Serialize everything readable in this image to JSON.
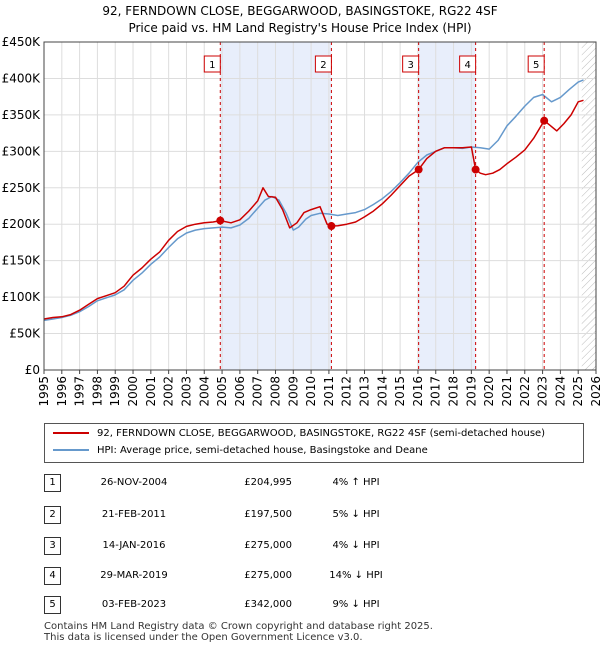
{
  "chart_data": {
    "type": "line",
    "title": "92, FERNDOWN CLOSE, BEGGARWOOD, BASINGSTOKE, RG22 4SF",
    "subtitle": "Price paid vs. HM Land Registry's House Price Index (HPI)",
    "xlim": [
      1995,
      2026
    ],
    "ylim": [
      0,
      450000
    ],
    "y_ticks": [
      0,
      50000,
      100000,
      150000,
      200000,
      250000,
      300000,
      350000,
      400000,
      450000
    ],
    "y_tick_labels": [
      "£0",
      "£50K",
      "£100K",
      "£150K",
      "£200K",
      "£250K",
      "£300K",
      "£350K",
      "£400K",
      "£450K"
    ],
    "x_ticks": [
      "1995",
      "1996",
      "1997",
      "1998",
      "1999",
      "2000",
      "2001",
      "2002",
      "2003",
      "2004",
      "2005",
      "2006",
      "2007",
      "2008",
      "2009",
      "2010",
      "2011",
      "2012",
      "2013",
      "2014",
      "2015",
      "2016",
      "2017",
      "2018",
      "2019",
      "2020",
      "2021",
      "2022",
      "2023",
      "2024",
      "2025",
      "2026"
    ],
    "grid": true,
    "shaded_periods": [
      [
        2004.9,
        2011.14
      ],
      [
        2016.04,
        2019.24
      ]
    ],
    "future_hatch_from": 2025.2,
    "series": [
      {
        "name": "92, FERNDOWN CLOSE, BEGGARWOOD, BASINGSTOKE, RG22 4SF (semi-detached house)",
        "color": "#cc0000",
        "x": [
          1995.0,
          1995.5,
          1996.0,
          1996.5,
          1997.0,
          1997.5,
          1998.0,
          1998.5,
          1999.0,
          1999.5,
          2000.0,
          2000.5,
          2001.0,
          2001.5,
          2002.0,
          2002.5,
          2003.0,
          2003.5,
          2004.0,
          2004.5,
          2004.9,
          2005.5,
          2006.0,
          2006.5,
          2007.0,
          2007.3,
          2007.6,
          2008.0,
          2008.4,
          2008.8,
          2009.2,
          2009.6,
          2010.0,
          2010.5,
          2010.9,
          2011.14,
          2011.5,
          2012.0,
          2012.5,
          2013.0,
          2013.5,
          2014.0,
          2014.5,
          2015.0,
          2015.5,
          2016.04,
          2016.5,
          2017.0,
          2017.5,
          2018.0,
          2018.5,
          2019.0,
          2019.24,
          2019.5,
          2019.8,
          2020.2,
          2020.6,
          2021.0,
          2021.5,
          2022.0,
          2022.5,
          2023.09,
          2023.4,
          2023.8,
          2024.2,
          2024.6,
          2025.0,
          2025.3
        ],
        "y": [
          70000,
          72000,
          73000,
          76000,
          82000,
          90000,
          98000,
          102000,
          106000,
          115000,
          130000,
          140000,
          152000,
          162000,
          178000,
          190000,
          197000,
          200000,
          202000,
          203000,
          204995,
          202000,
          206000,
          218000,
          232000,
          250000,
          238000,
          237000,
          220000,
          195000,
          202000,
          216000,
          220000,
          224000,
          200000,
          197500,
          198000,
          200000,
          203000,
          210000,
          218000,
          228000,
          240000,
          253000,
          266000,
          275000,
          290000,
          300000,
          305000,
          305000,
          305000,
          306000,
          275000,
          270000,
          268000,
          270000,
          275000,
          283000,
          292000,
          302000,
          318000,
          342000,
          336000,
          328000,
          338000,
          350000,
          368000,
          370000
        ]
      },
      {
        "name": "HPI: Average price, semi-detached house, Basingstoke and Deane",
        "color": "#6699cc",
        "x": [
          1995.0,
          1995.5,
          1996.0,
          1996.5,
          1997.0,
          1997.5,
          1998.0,
          1998.5,
          1999.0,
          1999.5,
          2000.0,
          2000.5,
          2001.0,
          2001.5,
          2002.0,
          2002.5,
          2003.0,
          2003.5,
          2004.0,
          2004.5,
          2005.0,
          2005.5,
          2006.0,
          2006.5,
          2007.0,
          2007.4,
          2007.8,
          2008.2,
          2008.6,
          2009.0,
          2009.3,
          2009.7,
          2010.0,
          2010.5,
          2011.0,
          2011.5,
          2012.0,
          2012.5,
          2013.0,
          2013.5,
          2014.0,
          2014.5,
          2015.0,
          2015.5,
          2016.0,
          2016.5,
          2017.0,
          2017.5,
          2018.0,
          2018.5,
          2019.0,
          2019.5,
          2020.0,
          2020.5,
          2021.0,
          2021.5,
          2022.0,
          2022.5,
          2023.0,
          2023.5,
          2024.0,
          2024.5,
          2025.0,
          2025.3
        ],
        "y": [
          68000,
          70000,
          72000,
          75000,
          80000,
          87000,
          95000,
          99000,
          103000,
          110000,
          123000,
          133000,
          145000,
          155000,
          168000,
          180000,
          188000,
          192000,
          194000,
          195000,
          196000,
          195000,
          199000,
          208000,
          222000,
          233000,
          238000,
          233000,
          215000,
          192000,
          196000,
          207000,
          212000,
          215000,
          214000,
          212000,
          214000,
          216000,
          220000,
          227000,
          235000,
          245000,
          257000,
          270000,
          285000,
          295000,
          300000,
          305000,
          305000,
          304000,
          306000,
          305000,
          303000,
          315000,
          335000,
          348000,
          362000,
          374000,
          378000,
          368000,
          374000,
          385000,
          395000,
          398000
        ]
      }
    ],
    "annotations": [
      {
        "label": "1",
        "x": 2004.9,
        "y": 204995
      },
      {
        "label": "2",
        "x": 2011.14,
        "y": 197500
      },
      {
        "label": "3",
        "x": 2016.04,
        "y": 275000
      },
      {
        "label": "4",
        "x": 2019.24,
        "y": 275000
      },
      {
        "label": "5",
        "x": 2023.09,
        "y": 342000
      }
    ]
  },
  "legend": {
    "property": "92, FERNDOWN CLOSE, BEGGARWOOD, BASINGSTOKE, RG22 4SF (semi-detached house)",
    "hpi": "HPI: Average price, semi-detached house, Basingstoke and Deane"
  },
  "transactions": [
    {
      "num": "1",
      "date": "26-NOV-2004",
      "price": "£204,995",
      "hpi": "4% ↑ HPI"
    },
    {
      "num": "2",
      "date": "21-FEB-2011",
      "price": "£197,500",
      "hpi": "5% ↓ HPI"
    },
    {
      "num": "3",
      "date": "14-JAN-2016",
      "price": "£275,000",
      "hpi": "4% ↓ HPI"
    },
    {
      "num": "4",
      "date": "29-MAR-2019",
      "price": "£275,000",
      "hpi": "14% ↓ HPI"
    },
    {
      "num": "5",
      "date": "03-FEB-2023",
      "price": "£342,000",
      "hpi": "9% ↓ HPI"
    }
  ],
  "footer": {
    "line1": "Contains HM Land Registry data © Crown copyright and database right 2025.",
    "line2": "This data is licensed under the Open Government Licence v3.0."
  }
}
